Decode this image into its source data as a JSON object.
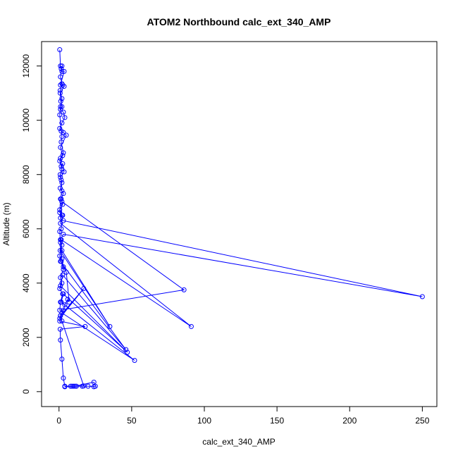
{
  "chart_data": {
    "type": "line",
    "title": "ATOM2 Northbound calc_ext_340_AMP",
    "xlabel": "calc_ext_340_AMP",
    "ylabel": "Altitude (m)",
    "xlim": [
      -12,
      260
    ],
    "ylim": [
      -550,
      12900
    ],
    "xticks": [
      0,
      50,
      100,
      150,
      200,
      250
    ],
    "yticks": [
      0,
      2000,
      4000,
      6000,
      8000,
      10000,
      12000
    ],
    "grid": false,
    "series": [
      {
        "color": "#0000ff",
        "marker": "open-circle",
        "points": [
          [
            0.5,
            12600
          ],
          [
            1.0,
            12000
          ],
          [
            1.5,
            11900
          ],
          [
            2.0,
            11800
          ],
          [
            3.5,
            11800
          ],
          [
            1.0,
            11300
          ],
          [
            2.5,
            11300
          ],
          [
            3.5,
            11250
          ],
          [
            0.8,
            11000
          ],
          [
            1.2,
            10700
          ],
          [
            2.0,
            10500
          ],
          [
            1.0,
            10400
          ],
          [
            3.0,
            10300
          ],
          [
            4.0,
            10100
          ],
          [
            2.0,
            9900
          ],
          [
            0.5,
            9700
          ],
          [
            1.5,
            9600
          ],
          [
            3.0,
            9550
          ],
          [
            5.0,
            9450
          ],
          [
            1.0,
            9000
          ],
          [
            2.5,
            8700
          ],
          [
            0.5,
            8500
          ],
          [
            1.5,
            8300
          ],
          [
            2.5,
            8400
          ],
          [
            3.5,
            8100
          ],
          [
            1.0,
            7900
          ],
          [
            2.0,
            7700
          ],
          [
            0.8,
            7500
          ],
          [
            3.0,
            7300
          ],
          [
            1.5,
            7100
          ],
          [
            2.5,
            6900
          ],
          [
            0.5,
            6700
          ],
          [
            2.0,
            6500
          ],
          [
            1.0,
            6400
          ],
          [
            3.0,
            6300
          ],
          [
            250,
            3500
          ],
          [
            3.0,
            5800
          ],
          [
            1.0,
            5600
          ],
          [
            2.0,
            5400
          ],
          [
            0.5,
            5000
          ],
          [
            1.5,
            4800
          ],
          [
            3.0,
            4500
          ],
          [
            1.0,
            4200
          ],
          [
            2.0,
            4000
          ],
          [
            0.5,
            3800
          ],
          [
            2.5,
            3600
          ],
          [
            1.0,
            3300
          ],
          [
            0.5,
            3000
          ],
          [
            86,
            3750
          ],
          [
            2.0,
            7000
          ],
          [
            1.0,
            6200
          ],
          [
            91,
            2400
          ],
          [
            1.5,
            5600
          ],
          [
            0.8,
            5200
          ],
          [
            35,
            2400
          ],
          [
            2.0,
            5200
          ],
          [
            1.0,
            4800
          ],
          [
            46,
            1550
          ],
          [
            2.5,
            4300
          ],
          [
            1.0,
            3900
          ],
          [
            47,
            1450
          ],
          [
            3.0,
            3600
          ],
          [
            1.5,
            3300
          ],
          [
            52,
            1150
          ],
          [
            2.0,
            2900
          ],
          [
            0.5,
            2700
          ],
          [
            17,
            3800
          ],
          [
            1.0,
            2800
          ],
          [
            0.5,
            2600
          ],
          [
            18,
            2400
          ],
          [
            0.8,
            2300
          ],
          [
            1.0,
            1900
          ],
          [
            2.0,
            1200
          ],
          [
            3.0,
            500
          ],
          [
            4,
            200
          ],
          [
            8,
            200
          ],
          [
            10,
            200
          ],
          [
            4,
            190
          ],
          [
            12,
            200
          ],
          [
            16,
            200
          ],
          [
            20,
            200
          ],
          [
            24,
            180
          ],
          [
            25,
            200
          ],
          [
            24,
            350
          ],
          [
            11,
            200
          ],
          [
            9,
            200
          ],
          [
            4,
            180
          ],
          [
            17,
            210
          ],
          [
            2.0,
            2600
          ],
          [
            1.0,
            2800
          ],
          [
            3.0,
            3000
          ],
          [
            4.0,
            3200
          ],
          [
            6.0,
            3400
          ],
          [
            7.0,
            3300
          ],
          [
            5.0,
            4400
          ],
          [
            3.0,
            4600
          ],
          [
            2.0,
            4900
          ],
          [
            1.0,
            5500
          ],
          [
            0.5,
            5900
          ],
          [
            1.5,
            6000
          ],
          [
            2.5,
            6500
          ],
          [
            0.5,
            6600
          ],
          [
            1.0,
            7100
          ],
          [
            2.0,
            7400
          ],
          [
            1.5,
            7800
          ],
          [
            0.8,
            8000
          ],
          [
            2.0,
            8200
          ],
          [
            1.0,
            8600
          ],
          [
            3.0,
            8800
          ],
          [
            1.5,
            9200
          ],
          [
            2.0,
            9400
          ],
          [
            0.5,
            10200
          ],
          [
            1.0,
            10500
          ],
          [
            2.0,
            10800
          ],
          [
            0.8,
            11100
          ],
          [
            2.0,
            11350
          ],
          [
            1.0,
            11600
          ],
          [
            2.0,
            12000
          ]
        ]
      }
    ]
  }
}
